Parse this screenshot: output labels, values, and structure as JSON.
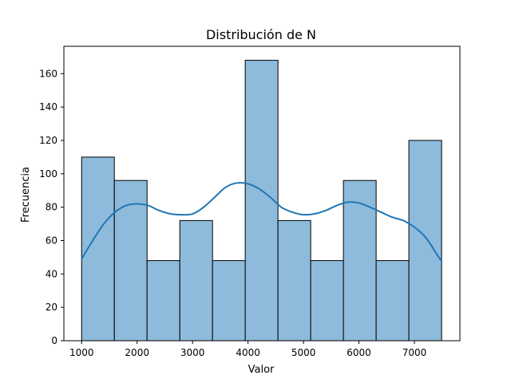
{
  "chart_data": {
    "type": "bar",
    "title": "Distribución de N",
    "xlabel": "Valor",
    "ylabel": "Frecuencia",
    "xlim": [
      680,
      7820
    ],
    "ylim": [
      0,
      176.4
    ],
    "grid": false,
    "xticks": [
      1000,
      2000,
      3000,
      4000,
      5000,
      6000,
      7000
    ],
    "yticks": [
      0,
      20,
      40,
      60,
      80,
      100,
      120,
      140,
      160
    ],
    "bins": [
      {
        "x0": 1000,
        "x1": 1590,
        "count": 110
      },
      {
        "x0": 1590,
        "x1": 2180,
        "count": 96
      },
      {
        "x0": 2180,
        "x1": 2770,
        "count": 48
      },
      {
        "x0": 2770,
        "x1": 3360,
        "count": 72
      },
      {
        "x0": 3360,
        "x1": 3950,
        "count": 48
      },
      {
        "x0": 3950,
        "x1": 4540,
        "count": 168
      },
      {
        "x0": 4540,
        "x1": 5130,
        "count": 72
      },
      {
        "x0": 5130,
        "x1": 5720,
        "count": 48
      },
      {
        "x0": 5720,
        "x1": 6310,
        "count": 96
      },
      {
        "x0": 6310,
        "x1": 6900,
        "count": 48
      },
      {
        "x0": 6900,
        "x1": 7490,
        "count": 120
      }
    ],
    "kde": {
      "x": [
        1000,
        1200,
        1400,
        1600,
        1800,
        2000,
        2200,
        2400,
        2600,
        2800,
        3000,
        3200,
        3400,
        3600,
        3800,
        4000,
        4200,
        4400,
        4600,
        4800,
        5000,
        5200,
        5400,
        5600,
        5800,
        6000,
        6200,
        6400,
        6600,
        6800,
        7000,
        7200,
        7400,
        7500
      ],
      "y": [
        49,
        60,
        70,
        77,
        81,
        82,
        81,
        78,
        76,
        75.5,
        76,
        80,
        86,
        92,
        94.5,
        94,
        91,
        86,
        80,
        77,
        75.5,
        76,
        78,
        81,
        83,
        82.5,
        80,
        77,
        74,
        72,
        68,
        62,
        52,
        47
      ]
    },
    "colors": {
      "bar_fill": "#8ebbdb",
      "bar_edge": "#000000",
      "kde_line": "#1f77b4"
    }
  }
}
